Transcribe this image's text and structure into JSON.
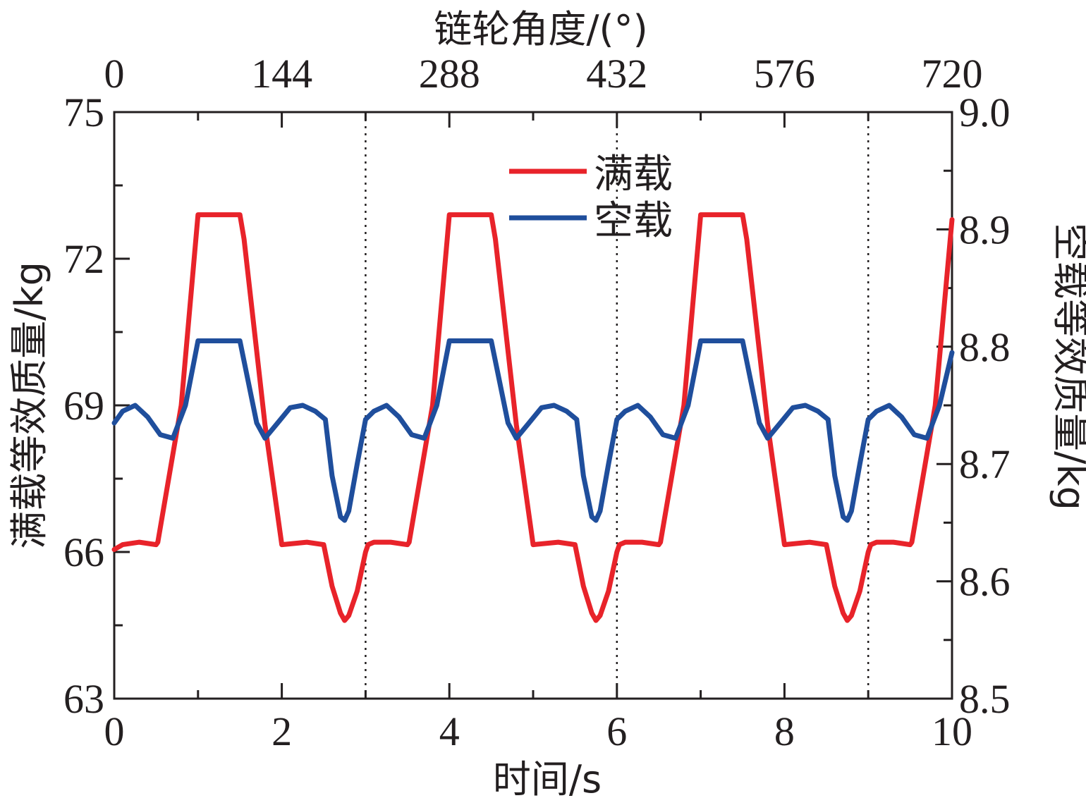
{
  "chart_data": {
    "type": "line",
    "title": "",
    "xlabel": "时间/s",
    "x2label": "链轮角度/(°)",
    "ylabel": "满载等效质量/kg",
    "y2label": "空载等效质量/kg",
    "xlim": [
      0,
      10
    ],
    "x2lim": [
      0,
      720
    ],
    "ylim": [
      63,
      75
    ],
    "y2lim": [
      8.5,
      9.0
    ],
    "x_ticks": [
      "0",
      "2",
      "4",
      "6",
      "8",
      "10"
    ],
    "x2_ticks": [
      "0",
      "144",
      "288",
      "432",
      "576",
      "720"
    ],
    "y_ticks": [
      "63",
      "66",
      "69",
      "72",
      "75"
    ],
    "y2_ticks": [
      "8.5",
      "8.6",
      "8.7",
      "8.8",
      "8.9",
      "9.0"
    ],
    "vertical_dotted_lines_x": [
      3,
      6,
      9
    ],
    "grid": false,
    "legend_position": "top-center",
    "series": [
      {
        "name": "满载",
        "axis": "left",
        "color": "#e8232a",
        "x": [
          0,
          0.1,
          0.3,
          0.5,
          0.52,
          0.8,
          1.0,
          1.5,
          1.55,
          1.8,
          2.0,
          2.3,
          2.5,
          2.6,
          2.7,
          2.75,
          2.8,
          2.9,
          3.0,
          3.03,
          3.1,
          3.3,
          3.5,
          3.52,
          3.8,
          4.0,
          4.5,
          4.55,
          4.8,
          5.0,
          5.3,
          5.5,
          5.6,
          5.7,
          5.75,
          5.8,
          5.9,
          6.0,
          6.03,
          6.1,
          6.3,
          6.5,
          6.52,
          6.8,
          7.0,
          7.5,
          7.55,
          7.8,
          8.0,
          8.3,
          8.5,
          8.6,
          8.7,
          8.75,
          8.8,
          8.9,
          9.0,
          9.03,
          9.1,
          9.3,
          9.5,
          9.52,
          9.8,
          10.0
        ],
        "values": [
          66.05,
          66.15,
          66.2,
          66.15,
          66.2,
          69.0,
          72.9,
          72.9,
          72.4,
          68.6,
          66.15,
          66.2,
          66.15,
          65.3,
          64.75,
          64.6,
          64.7,
          65.2,
          66.0,
          66.15,
          66.2,
          66.2,
          66.15,
          66.2,
          69.0,
          72.9,
          72.9,
          72.4,
          68.6,
          66.15,
          66.2,
          66.15,
          65.3,
          64.75,
          64.6,
          64.7,
          65.2,
          66.0,
          66.15,
          66.2,
          66.2,
          66.15,
          66.2,
          69.0,
          72.9,
          72.9,
          72.4,
          68.6,
          66.15,
          66.2,
          66.15,
          65.3,
          64.75,
          64.6,
          64.7,
          65.2,
          66.0,
          66.15,
          66.2,
          66.2,
          66.15,
          66.2,
          69.0,
          72.8
        ]
      },
      {
        "name": "空载",
        "axis": "right",
        "color": "#1f4e9c",
        "x": [
          0,
          0.1,
          0.25,
          0.4,
          0.55,
          0.7,
          0.85,
          1.0,
          1.5,
          1.6,
          1.7,
          1.8,
          1.95,
          2.1,
          2.25,
          2.4,
          2.52,
          2.6,
          2.7,
          2.75,
          2.8,
          2.9,
          3.0,
          3.1,
          3.25,
          3.4,
          3.55,
          3.7,
          3.85,
          4.0,
          4.5,
          4.6,
          4.7,
          4.8,
          4.95,
          5.1,
          5.25,
          5.4,
          5.52,
          5.6,
          5.7,
          5.75,
          5.8,
          5.9,
          6.0,
          6.1,
          6.25,
          6.4,
          6.55,
          6.7,
          6.85,
          7.0,
          7.5,
          7.6,
          7.7,
          7.8,
          7.95,
          8.1,
          8.25,
          8.4,
          8.52,
          8.6,
          8.7,
          8.75,
          8.8,
          8.9,
          9.0,
          9.1,
          9.25,
          9.4,
          9.55,
          9.7,
          9.85,
          10.0
        ],
        "values": [
          8.735,
          8.745,
          8.75,
          8.74,
          8.725,
          8.722,
          8.75,
          8.805,
          8.805,
          8.77,
          8.735,
          8.722,
          8.735,
          8.748,
          8.75,
          8.745,
          8.738,
          8.69,
          8.655,
          8.652,
          8.66,
          8.7,
          8.738,
          8.745,
          8.75,
          8.74,
          8.725,
          8.722,
          8.75,
          8.805,
          8.805,
          8.77,
          8.735,
          8.722,
          8.735,
          8.748,
          8.75,
          8.745,
          8.738,
          8.69,
          8.655,
          8.652,
          8.66,
          8.7,
          8.738,
          8.745,
          8.75,
          8.74,
          8.725,
          8.722,
          8.75,
          8.805,
          8.805,
          8.77,
          8.735,
          8.722,
          8.735,
          8.748,
          8.75,
          8.745,
          8.738,
          8.69,
          8.655,
          8.652,
          8.66,
          8.7,
          8.738,
          8.745,
          8.75,
          8.74,
          8.725,
          8.722,
          8.75,
          8.795
        ]
      }
    ]
  }
}
